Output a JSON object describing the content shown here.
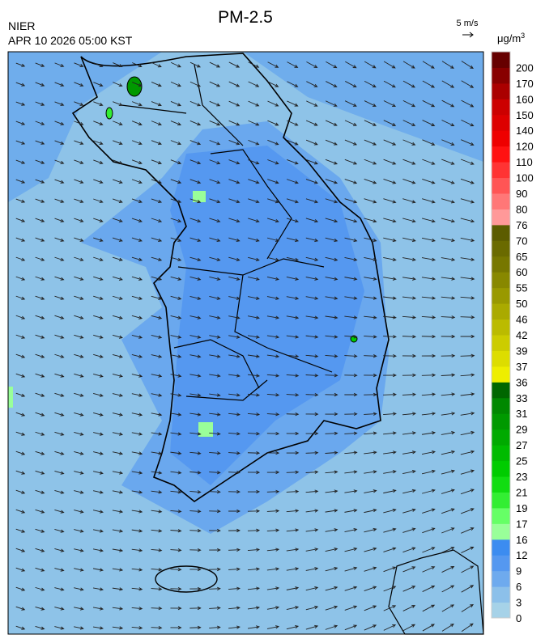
{
  "header": {
    "title": "PM-2.5",
    "agency": "NIER",
    "datetime": "APR 10 2026 05:00 KST",
    "wind_scale": "5 m/s"
  },
  "colorbar": {
    "unit": "μg/m",
    "unit_sup": "3",
    "labels": [
      0,
      3,
      6,
      9,
      12,
      16,
      17,
      19,
      21,
      23,
      25,
      27,
      29,
      31,
      33,
      36,
      37,
      39,
      42,
      46,
      50,
      55,
      60,
      65,
      70,
      76,
      80,
      90,
      100,
      110,
      120,
      140,
      150,
      160,
      170,
      200
    ],
    "colors": [
      "#a6d2e8",
      "#8cc0ea",
      "#6eaaee",
      "#5598f0",
      "#3c8cf0",
      "#99ff99",
      "#66ff66",
      "#33ee33",
      "#11dd11",
      "#00cc00",
      "#00bb00",
      "#00aa00",
      "#009900",
      "#008800",
      "#006600",
      "#eeee00",
      "#dddd00",
      "#cccc00",
      "#bbbb00",
      "#aaaa00",
      "#999900",
      "#888800",
      "#777700",
      "#6a6a00",
      "#5c5c00",
      "#ff9999",
      "#ff7777",
      "#ff5555",
      "#ff3333",
      "#ff1111",
      "#ee0000",
      "#dd0000",
      "#cc0000",
      "#aa0000",
      "#880000",
      "#660000"
    ]
  }
}
